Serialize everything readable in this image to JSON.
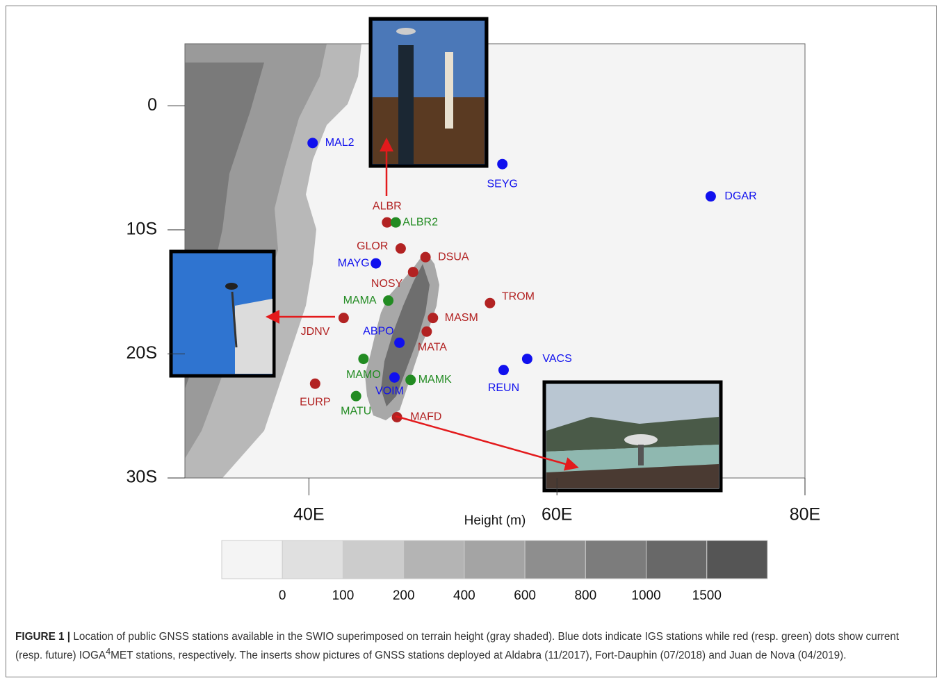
{
  "map": {
    "xlim": [
      30,
      80
    ],
    "ylim": [
      -30,
      5
    ],
    "xticks": [
      {
        "value": 40,
        "label": "40E"
      },
      {
        "value": 60,
        "label": "60E"
      },
      {
        "value": 80,
        "label": "80E"
      }
    ],
    "yticks": [
      {
        "value": 0,
        "label": "0"
      },
      {
        "value": -10,
        "label": "10S"
      },
      {
        "value": -20,
        "label": "20S"
      },
      {
        "value": -30,
        "label": "30S"
      }
    ],
    "stations": [
      {
        "name": "MAL2",
        "lon": 40.3,
        "lat": -3.0,
        "color": "#1010ee"
      },
      {
        "name": "SEYG",
        "lon": 55.6,
        "lat": -4.7,
        "color": "#1010ee"
      },
      {
        "name": "DGAR",
        "lon": 72.4,
        "lat": -7.3,
        "color": "#1010ee"
      },
      {
        "name": "ALBR",
        "lon": 46.3,
        "lat": -9.4,
        "color": "#b22222"
      },
      {
        "name": "ALBR2",
        "lon": 47.0,
        "lat": -9.4,
        "color": "#228b22"
      },
      {
        "name": "GLOR",
        "lon": 47.4,
        "lat": -11.5,
        "color": "#b22222"
      },
      {
        "name": "DSUA",
        "lon": 49.4,
        "lat": -12.2,
        "color": "#b22222"
      },
      {
        "name": "MAYG",
        "lon": 45.4,
        "lat": -12.7,
        "color": "#1010ee"
      },
      {
        "name": "NOSY",
        "lon": 48.4,
        "lat": -13.4,
        "color": "#b22222"
      },
      {
        "name": "MAMA",
        "lon": 46.4,
        "lat": -15.7,
        "color": "#228b22"
      },
      {
        "name": "TROM",
        "lon": 54.6,
        "lat": -15.9,
        "color": "#b22222"
      },
      {
        "name": "JDNV",
        "lon": 42.8,
        "lat": -17.1,
        "color": "#b22222"
      },
      {
        "name": "MASM",
        "lon": 50.0,
        "lat": -17.1,
        "color": "#b22222"
      },
      {
        "name": "MATA",
        "lon": 49.5,
        "lat": -18.2,
        "color": "#b22222"
      },
      {
        "name": "ABPO",
        "lon": 47.3,
        "lat": -19.1,
        "color": "#1010ee"
      },
      {
        "name": "VACS",
        "lon": 57.6,
        "lat": -20.4,
        "color": "#1010ee"
      },
      {
        "name": "MAMO",
        "lon": 44.4,
        "lat": -20.4,
        "color": "#228b22"
      },
      {
        "name": "REUN",
        "lon": 55.7,
        "lat": -21.3,
        "color": "#1010ee"
      },
      {
        "name": "VOIM",
        "lon": 46.9,
        "lat": -21.9,
        "color": "#1010ee"
      },
      {
        "name": "MAMK",
        "lon": 48.2,
        "lat": -22.1,
        "color": "#228b22"
      },
      {
        "name": "EURP",
        "lon": 40.5,
        "lat": -22.4,
        "color": "#b22222"
      },
      {
        "name": "MATU",
        "lon": 43.8,
        "lat": -23.4,
        "color": "#228b22"
      },
      {
        "name": "MAFD",
        "lon": 47.1,
        "lat": -25.1,
        "color": "#b22222"
      }
    ],
    "colorbar": {
      "title": "Height (m)",
      "levels": [
        0,
        100,
        200,
        400,
        600,
        800,
        1000,
        1500
      ],
      "colors": [
        "#f4f4f4",
        "#e0e0e0",
        "#cccccc",
        "#b4b4b4",
        "#a4a4a4",
        "#8e8e8e",
        "#7c7c7c",
        "#686868",
        "#555555"
      ]
    }
  },
  "caption": {
    "label": "FIGURE 1 |",
    "text_1": "Location of public GNSS stations available in the SWIO superimposed on terrain height (gray shaded). Blue dots indicate IGS stations while red (resp. green) dots show current (resp. future) IOGA",
    "superscript": "4",
    "text_2": "MET stations, respectively. The inserts show pictures of GNSS stations deployed at Aldabra (11/2017), Fort-Dauphin (07/2018) and Juan de Nova (04/2019)."
  }
}
